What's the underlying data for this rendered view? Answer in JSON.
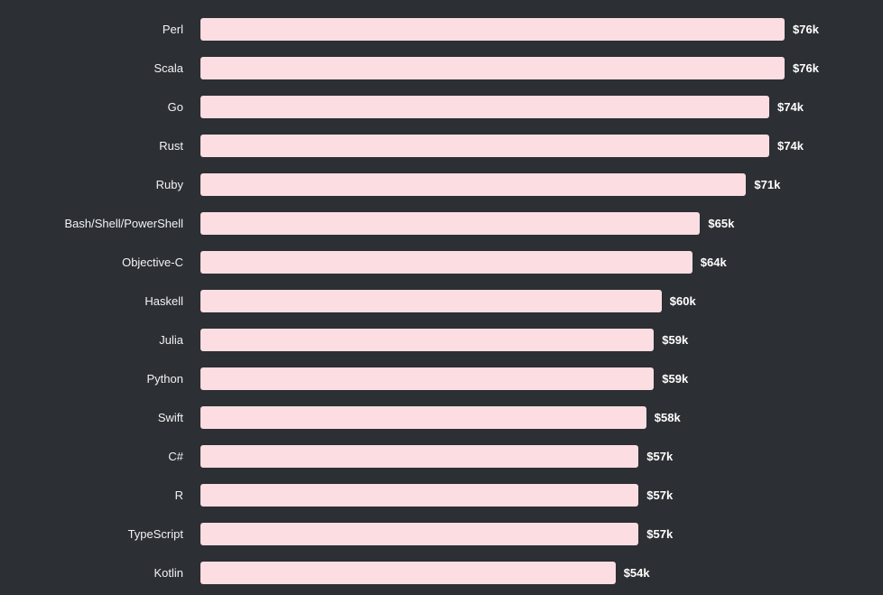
{
  "chart_data": {
    "type": "bar",
    "orientation": "horizontal",
    "title": "",
    "xlabel": "",
    "ylabel": "",
    "xlim": [
      0,
      76
    ],
    "grid": false,
    "legend": false,
    "categories": [
      "Perl",
      "Scala",
      "Go",
      "Rust",
      "Ruby",
      "Bash/Shell/PowerShell",
      "Objective-C",
      "Haskell",
      "Julia",
      "Python",
      "Swift",
      "C#",
      "R",
      "TypeScript",
      "Kotlin"
    ],
    "values": [
      76,
      76,
      74,
      74,
      71,
      65,
      64,
      60,
      59,
      59,
      58,
      57,
      57,
      57,
      54
    ],
    "value_labels": [
      "$76k",
      "$76k",
      "$74k",
      "$74k",
      "$71k",
      "$65k",
      "$64k",
      "$60k",
      "$59k",
      "$59k",
      "$58k",
      "$57k",
      "$57k",
      "$57k",
      "$54k"
    ],
    "colors": {
      "bar": "#fbdde2",
      "background": "#2c2f33",
      "text": "#ffffff"
    }
  }
}
